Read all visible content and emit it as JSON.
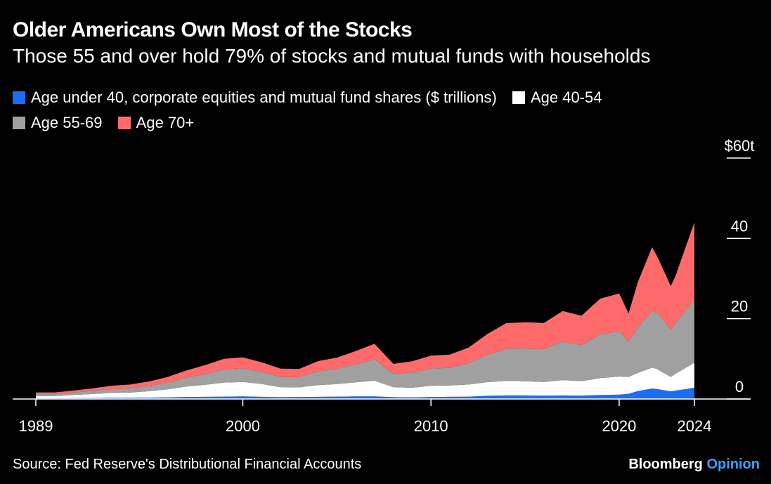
{
  "title": "Older Americans Own Most of the Stocks",
  "subtitle": "Those 55 and over hold 79% of stocks and mutual funds with households",
  "source": "Source: Fed Reserve's Distributional Financial Accounts",
  "brand": {
    "name": "Bloomberg",
    "suffix": "Opinion"
  },
  "chart_data": {
    "type": "area",
    "stacked": true,
    "ylim": [
      0,
      60
    ],
    "xlim": [
      1989,
      2027
    ],
    "y_ticks": [
      {
        "value": 60,
        "label": "$60t"
      },
      {
        "value": 40,
        "label": "40"
      },
      {
        "value": 20,
        "label": "20"
      },
      {
        "value": 0,
        "label": "0"
      }
    ],
    "x_ticks": [
      {
        "value": 1989,
        "label": "1989"
      },
      {
        "value": 2000,
        "label": "2000"
      },
      {
        "value": 2010,
        "label": "2010"
      },
      {
        "value": 2020,
        "label": "2020"
      },
      {
        "value": 2024,
        "label": "2024"
      }
    ],
    "legend_position": "top-left",
    "x": [
      1989,
      1990,
      1991,
      1992,
      1993,
      1994,
      1995,
      1996,
      1997,
      1998,
      1999,
      2000,
      2001,
      2002,
      2003,
      2004,
      2005,
      2006,
      2007,
      2008,
      2009,
      2010,
      2011,
      2012,
      2013,
      2014,
      2015,
      2016,
      2017,
      2018,
      2019,
      2020,
      2020.5,
      2021,
      2021.75,
      2022,
      2022.75,
      2023,
      2024
    ],
    "series": [
      {
        "name": "Age under 40, corporate equities and mutual fund shares ($ trillions)",
        "color": "#1a6ef5",
        "values": [
          0.15,
          0.15,
          0.2,
          0.25,
          0.3,
          0.3,
          0.35,
          0.4,
          0.5,
          0.55,
          0.6,
          0.65,
          0.55,
          0.45,
          0.5,
          0.55,
          0.6,
          0.65,
          0.65,
          0.45,
          0.4,
          0.5,
          0.55,
          0.6,
          0.8,
          0.9,
          0.9,
          0.85,
          0.9,
          0.85,
          1.0,
          1.1,
          1.3,
          2.0,
          2.6,
          2.5,
          1.9,
          2.1,
          2.8
        ]
      },
      {
        "name": "Age 40-54",
        "color": "#ffffff",
        "values": [
          0.6,
          0.6,
          0.8,
          1.0,
          1.2,
          1.3,
          1.6,
          2.0,
          2.6,
          3.0,
          3.5,
          3.6,
          3.2,
          2.5,
          2.4,
          2.9,
          3.1,
          3.5,
          3.9,
          2.5,
          2.4,
          2.8,
          2.8,
          3.0,
          3.4,
          3.6,
          3.5,
          3.4,
          3.8,
          3.6,
          4.2,
          4.5,
          4.2,
          4.5,
          5.2,
          5.0,
          3.6,
          4.2,
          6.2
        ]
      },
      {
        "name": "Age 55-69",
        "color": "#a0a0a0",
        "values": [
          0.5,
          0.5,
          0.6,
          0.8,
          1.0,
          1.1,
          1.3,
          1.7,
          2.2,
          2.7,
          3.3,
          3.4,
          3.0,
          2.5,
          2.6,
          3.4,
          3.8,
          4.5,
          5.3,
          3.3,
          3.8,
          4.3,
          4.4,
          5.3,
          6.8,
          8.0,
          8.2,
          8.2,
          9.6,
          9.0,
          10.8,
          11.4,
          8.8,
          11.5,
          14.0,
          14.1,
          11.8,
          12.6,
          15.8
        ]
      },
      {
        "name": "Age 70+",
        "color": "#ff6b6b",
        "values": [
          0.4,
          0.4,
          0.5,
          0.6,
          0.8,
          0.9,
          1.1,
          1.4,
          1.8,
          2.2,
          2.6,
          2.7,
          2.4,
          2.1,
          2.0,
          2.6,
          2.8,
          3.3,
          3.9,
          2.5,
          2.8,
          3.2,
          3.3,
          3.9,
          5.2,
          6.4,
          6.5,
          6.5,
          7.6,
          7.3,
          9.0,
          9.3,
          7.0,
          11.2,
          16.0,
          14.1,
          10.8,
          11.8,
          19.2
        ]
      }
    ]
  }
}
